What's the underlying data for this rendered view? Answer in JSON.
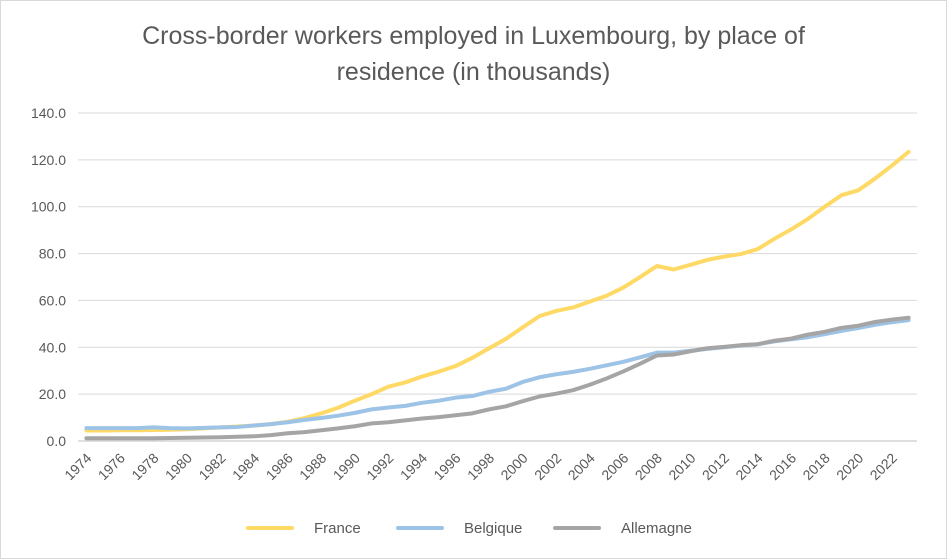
{
  "chart_data": {
    "type": "line",
    "title_line1": "Cross-border workers employed in Luxembourg, by place of",
    "title_line2": "residence (in thousands)",
    "xlabel": "",
    "ylabel": "",
    "ylim": [
      0,
      140
    ],
    "yticks": [
      "0.0",
      "20.0",
      "40.0",
      "60.0",
      "80.0",
      "100.0",
      "120.0",
      "140.0"
    ],
    "x": [
      1974,
      1975,
      1976,
      1977,
      1978,
      1979,
      1980,
      1981,
      1982,
      1983,
      1984,
      1985,
      1986,
      1987,
      1988,
      1989,
      1990,
      1991,
      1992,
      1993,
      1994,
      1995,
      1996,
      1997,
      1998,
      1999,
      2000,
      2001,
      2002,
      2003,
      2004,
      2005,
      2006,
      2007,
      2008,
      2009,
      2010,
      2011,
      2012,
      2013,
      2014,
      2015,
      2016,
      2017,
      2018,
      2019,
      2020,
      2021,
      2022,
      2023
    ],
    "xtick_labels": [
      "1974",
      "1976",
      "1978",
      "1980",
      "1982",
      "1984",
      "1986",
      "1988",
      "1990",
      "1992",
      "1994",
      "1996",
      "1998",
      "2000",
      "2002",
      "2004",
      "2006",
      "2008",
      "2010",
      "2012",
      "2014",
      "2016",
      "2018",
      "2020",
      "2022"
    ],
    "grid": true,
    "legend_position": "bottom",
    "series": [
      {
        "name": "France",
        "color": "#ffd966",
        "values": [
          4.5,
          4.5,
          4.6,
          4.6,
          4.7,
          4.8,
          5.0,
          5.4,
          5.8,
          6.2,
          6.6,
          7.2,
          8.2,
          9.8,
          11.8,
          14.2,
          17.2,
          20.0,
          23.2,
          25.0,
          27.5,
          29.6,
          32.0,
          35.5,
          39.6,
          43.6,
          48.5,
          53.3,
          55.5,
          57.0,
          59.5,
          62.0,
          65.5,
          70.0,
          74.7,
          73.2,
          75.2,
          77.3,
          78.7,
          79.8,
          81.9,
          86.3,
          90.3,
          94.8,
          100.0,
          104.9,
          107.0,
          112.0,
          117.5,
          123.4
        ]
      },
      {
        "name": "Belgique",
        "color": "#9dc3e6",
        "values": [
          5.5,
          5.5,
          5.5,
          5.5,
          5.8,
          5.5,
          5.4,
          5.6,
          5.8,
          6.0,
          6.6,
          7.2,
          8.0,
          9.0,
          9.8,
          10.8,
          12.0,
          13.5,
          14.3,
          15.0,
          16.3,
          17.2,
          18.5,
          19.2,
          21.0,
          22.3,
          25.2,
          27.2,
          28.5,
          29.5,
          30.8,
          32.3,
          33.8,
          35.7,
          37.7,
          37.7,
          38.5,
          39.3,
          40.0,
          40.7,
          41.3,
          42.5,
          43.4,
          44.3,
          45.6,
          47.0,
          48.2,
          49.6,
          50.7,
          51.6
        ]
      },
      {
        "name": "Allemagne",
        "color": "#a5a5a5",
        "values": [
          1.2,
          1.2,
          1.2,
          1.2,
          1.2,
          1.3,
          1.4,
          1.5,
          1.6,
          1.8,
          2.0,
          2.5,
          3.3,
          3.8,
          4.6,
          5.4,
          6.3,
          7.5,
          8.0,
          8.8,
          9.6,
          10.2,
          11.0,
          11.8,
          13.5,
          14.8,
          17.0,
          19.0,
          20.2,
          21.7,
          24.0,
          26.7,
          29.7,
          33.0,
          36.5,
          36.9,
          38.3,
          39.6,
          40.2,
          40.9,
          41.3,
          42.8,
          43.7,
          45.4,
          46.6,
          48.3,
          49.2,
          50.8,
          51.8,
          52.6
        ]
      }
    ]
  }
}
